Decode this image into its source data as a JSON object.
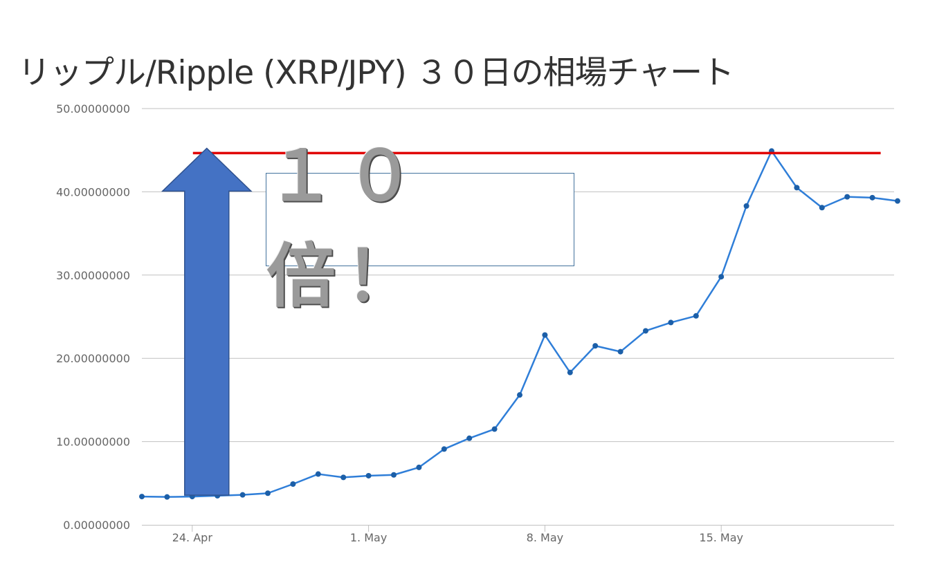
{
  "title": "リップル/Ripple (XRP/JPY) ３０日の相場チャート",
  "callout": "１０倍！",
  "colors": {
    "line": "#2f7ed8",
    "marker": "#1c5fa8",
    "grid": "#c0c0c0",
    "highlight_line": "#e00000",
    "arrow_fill": "#4472c4",
    "arrow_stroke": "#2f528f"
  },
  "chart_data": {
    "type": "line",
    "title": "リップル/Ripple (XRP/JPY) ３０日の相場チャート",
    "xlabel": "",
    "ylabel": "",
    "ylim": [
      0,
      50
    ],
    "yticks": [
      {
        "value": 0,
        "label": "0.00000000"
      },
      {
        "value": 10,
        "label": "10.00000000"
      },
      {
        "value": 20,
        "label": "20.00000000"
      },
      {
        "value": 30,
        "label": "30.00000000"
      },
      {
        "value": 40,
        "label": "40.00000000"
      },
      {
        "value": 50,
        "label": "50.00000000"
      }
    ],
    "xticks": [
      {
        "date": "2017-04-24",
        "label": "24. Apr"
      },
      {
        "date": "2017-05-01",
        "label": "1. May"
      },
      {
        "date": "2017-05-08",
        "label": "8. May"
      },
      {
        "date": "2017-05-15",
        "label": "15. May"
      }
    ],
    "grid": true,
    "series": [
      {
        "points": [
          {
            "x": "2017-04-22",
            "y": 3.4
          },
          {
            "x": "2017-04-23",
            "y": 3.35
          },
          {
            "x": "2017-04-24",
            "y": 3.4
          },
          {
            "x": "2017-04-25",
            "y": 3.5
          },
          {
            "x": "2017-04-26",
            "y": 3.6
          },
          {
            "x": "2017-04-27",
            "y": 3.8
          },
          {
            "x": "2017-04-28",
            "y": 4.9
          },
          {
            "x": "2017-04-29",
            "y": 6.1
          },
          {
            "x": "2017-04-30",
            "y": 5.7
          },
          {
            "x": "2017-05-01",
            "y": 5.9
          },
          {
            "x": "2017-05-02",
            "y": 6.0
          },
          {
            "x": "2017-05-03",
            "y": 6.9
          },
          {
            "x": "2017-05-04",
            "y": 9.1
          },
          {
            "x": "2017-05-05",
            "y": 10.4
          },
          {
            "x": "2017-05-06",
            "y": 11.5
          },
          {
            "x": "2017-05-07",
            "y": 15.6
          },
          {
            "x": "2017-05-08",
            "y": 22.8
          },
          {
            "x": "2017-05-09",
            "y": 18.3
          },
          {
            "x": "2017-05-10",
            "y": 21.5
          },
          {
            "x": "2017-05-11",
            "y": 20.8
          },
          {
            "x": "2017-05-12",
            "y": 23.3
          },
          {
            "x": "2017-05-13",
            "y": 24.3
          },
          {
            "x": "2017-05-14",
            "y": 25.1
          },
          {
            "x": "2017-05-15",
            "y": 29.8
          },
          {
            "x": "2017-05-16",
            "y": 38.3
          },
          {
            "x": "2017-05-17",
            "y": 44.9
          },
          {
            "x": "2017-05-18",
            "y": 40.5
          },
          {
            "x": "2017-05-19",
            "y": 38.1
          },
          {
            "x": "2017-05-20",
            "y": 39.4
          },
          {
            "x": "2017-05-21",
            "y": 39.3
          },
          {
            "x": "2017-05-22",
            "y": 38.9
          }
        ]
      }
    ],
    "annotations": [
      {
        "type": "horizontal-line",
        "y": 44.9,
        "from": "2017-04-24",
        "to": "2017-05-21",
        "color": "#e00000"
      },
      {
        "type": "up-arrow",
        "at": "2017-04-24",
        "from_y": 3.4,
        "to_y": 44.9,
        "color": "#4472c4"
      }
    ]
  }
}
